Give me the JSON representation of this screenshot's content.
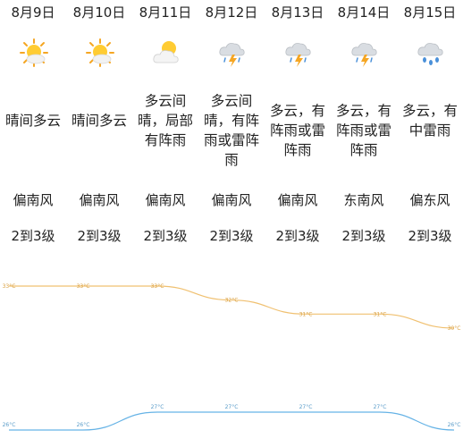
{
  "days": [
    {
      "date": "8月9日",
      "icon": "sunny-cloudy-icon",
      "weather": "晴间多云",
      "wind": "偏南风",
      "level": "2到3级"
    },
    {
      "date": "8月10日",
      "icon": "sunny-cloudy-icon",
      "weather": "晴间多云",
      "wind": "偏南风",
      "level": "2到3级"
    },
    {
      "date": "8月11日",
      "icon": "partly-cloudy-icon",
      "weather": "多云间晴，局部有阵雨",
      "wind": "偏南风",
      "level": "2到3级"
    },
    {
      "date": "8月12日",
      "icon": "thunderstorm-icon",
      "weather": "多云间晴，有阵雨或雷阵雨",
      "wind": "偏南风",
      "level": "2到3级"
    },
    {
      "date": "8月13日",
      "icon": "thunderstorm-icon",
      "weather": "多云，有阵雨或雷阵雨",
      "wind": "偏南风",
      "level": "2到3级"
    },
    {
      "date": "8月14日",
      "icon": "thunderstorm-icon",
      "weather": "多云，有阵雨或雷阵雨",
      "wind": "东南风",
      "level": "2到3级"
    },
    {
      "date": "8月15日",
      "icon": "heavy-thunder-rain-icon",
      "weather": "多云，有中雷雨",
      "wind": "偏东风",
      "level": "2到3级"
    }
  ],
  "chart_data": {
    "type": "line",
    "x": [
      "8月9日",
      "8月10日",
      "8月11日",
      "8月12日",
      "8月13日",
      "8月14日",
      "8月15日"
    ],
    "series": [
      {
        "values": [
          33,
          33,
          33,
          32,
          31,
          31,
          30
        ],
        "labels": [
          "33°C",
          "33°C",
          "33°C",
          "32°C",
          "31°C",
          "31°C",
          "30°C"
        ],
        "color": "#f0c070"
      },
      {
        "values": [
          26,
          26,
          27,
          27,
          27,
          27,
          26
        ],
        "labels": [
          "26°C",
          "26°C",
          "27°C",
          "27°C",
          "27°C",
          "27°C",
          "26°C"
        ],
        "color": "#66b3e6"
      }
    ],
    "xlabel": "",
    "ylabel": "",
    "grid": false
  }
}
